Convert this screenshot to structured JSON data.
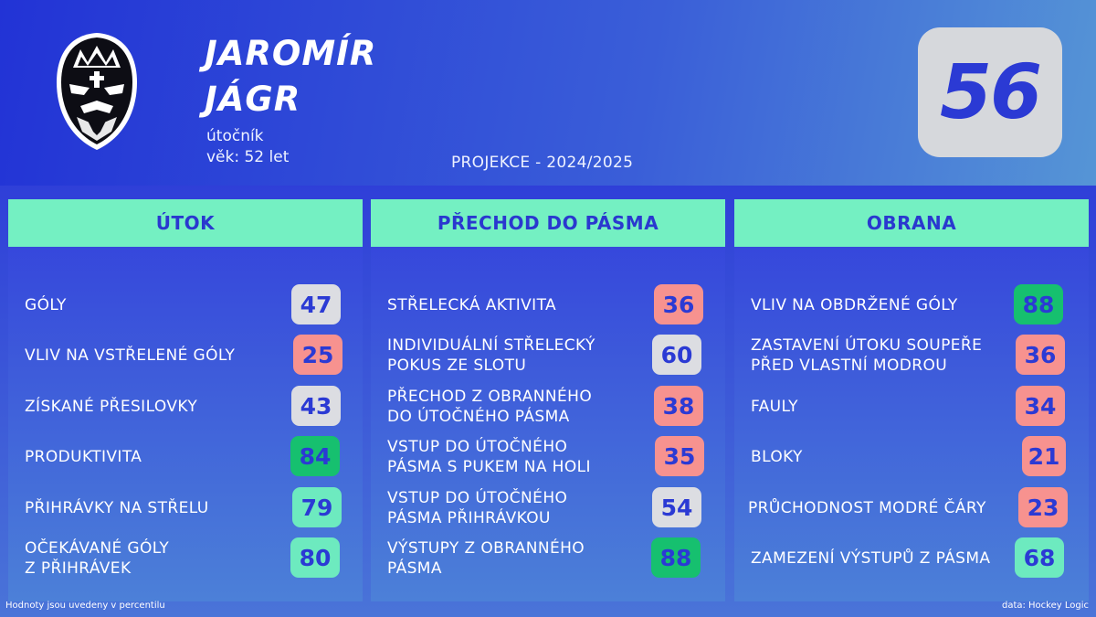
{
  "player": {
    "first_name": "JAROMÍR",
    "last_name": "JÁGR",
    "position": "útočník",
    "age": "věk: 52 let",
    "projection": "PROJEKCE - 2024/2025",
    "rating": "56",
    "logo_icon": "knight-crown-mask-icon"
  },
  "colors": {
    "background_blue": "#2233d6",
    "header_green": "#74f0c2",
    "text_blue": "#2b3ad4",
    "badge_gray": "#dcdde2",
    "badge_red": "#f7928f",
    "badge_green_dark": "#16c06f",
    "badge_green_light": "#6deabf"
  },
  "panels": [
    {
      "title": "ÚTOK",
      "rows": [
        {
          "label": "GÓLY",
          "value": "47",
          "color": "gray"
        },
        {
          "label": "VLIV NA VSTŘELENÉ GÓLY",
          "value": "25",
          "color": "red"
        },
        {
          "label": "ZÍSKANÉ PŘESILOVKY",
          "value": "43",
          "color": "gray"
        },
        {
          "label": "PRODUKTIVITA",
          "value": "84",
          "color": "green-dark"
        },
        {
          "label": "PŘIHRÁVKY NA STŘELU",
          "value": "79",
          "color": "green-light"
        },
        {
          "label": "OČEKÁVANÉ GÓLY\nZ PŘIHRÁVEK",
          "value": "80",
          "color": "green-light"
        }
      ]
    },
    {
      "title": "PŘECHOD DO PÁSMA",
      "rows": [
        {
          "label": "STŘELECKÁ AKTIVITA",
          "value": "36",
          "color": "red"
        },
        {
          "label": "INDIVIDUÁLNÍ STŘELECKÝ\nPOKUS ZE SLOTU",
          "value": "60",
          "color": "gray"
        },
        {
          "label": "PŘECHOD Z OBRANNÉHO\nDO ÚTOČNÉHO PÁSMA",
          "value": "38",
          "color": "red"
        },
        {
          "label": "VSTUP DO ÚTOČNÉHO\nPÁSMA S PUKEM NA HOLI",
          "value": "35",
          "color": "red"
        },
        {
          "label": "VSTUP DO ÚTOČNÉHO\nPÁSMA PŘIHRÁVKOU",
          "value": "54",
          "color": "gray"
        },
        {
          "label": "VÝSTUPY Z OBRANNÉHO\nPÁSMA",
          "value": "88",
          "color": "green-dark"
        }
      ]
    },
    {
      "title": "OBRANA",
      "rows": [
        {
          "label": "VLIV NA OBDRŽENÉ GÓLY",
          "value": "88",
          "color": "green-dark"
        },
        {
          "label": "ZASTAVENÍ ÚTOKU SOUPEŘE\nPŘED VLASTNÍ MODROU",
          "value": "36",
          "color": "red"
        },
        {
          "label": "FAULY",
          "value": "34",
          "color": "red"
        },
        {
          "label": "BLOKY",
          "value": "21",
          "color": "red"
        },
        {
          "label": "PRŮCHODNOST MODRÉ ČÁRY",
          "value": "23",
          "color": "red"
        },
        {
          "label": "ZAMEZENÍ VÝSTUPŮ Z PÁSMA",
          "value": "68",
          "color": "green-light"
        }
      ]
    }
  ],
  "footer": {
    "note": "Hodnoty jsou uvedeny v percentilu",
    "source": "data: Hockey Logic"
  }
}
